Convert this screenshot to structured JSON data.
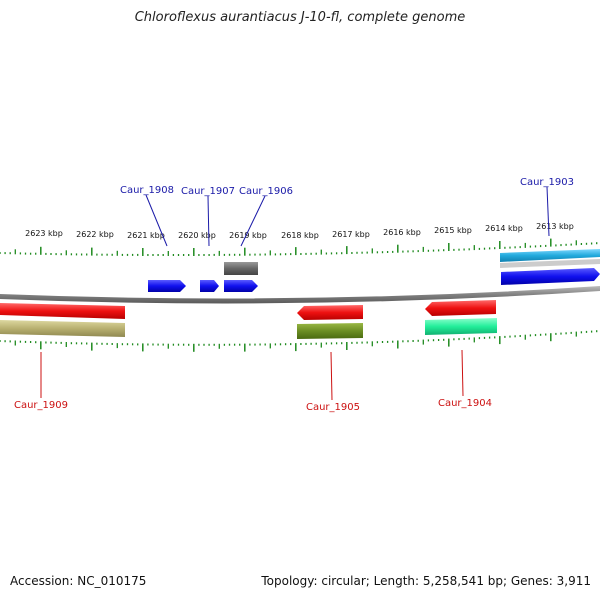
{
  "title": "Chloroflexus aurantiacus J-10-fl, complete genome",
  "footer": {
    "accession": "Accession: NC_010175",
    "summary": "Topology: circular; Length: 5,258,541 bp; Genes: 3,911"
  },
  "scale_labels": [
    "2623 kbp",
    "2622 kbp",
    "2621 kbp",
    "2620 kbp",
    "2619 kbp",
    "2618 kbp",
    "2617 kbp",
    "2616 kbp",
    "2615 kbp",
    "2614 kbp",
    "2613 kbp"
  ],
  "gene_labels_forward": [
    "Caur_1908",
    "Caur_1907",
    "Caur_1906",
    "Caur_1903"
  ],
  "gene_labels_reverse": [
    "Caur_1909",
    "Caur_1905",
    "Caur_1904"
  ],
  "colors": {
    "forward_label": "#1a1aa8",
    "reverse_label": "#cc1111",
    "tick": "#1f8a1f",
    "backbone": "#808080",
    "forward_gene": "#1010ee",
    "reverse_gene": "#ee1111",
    "olive": "#6b8e23",
    "khaki": "#b8b070",
    "teal": "#22ee9a",
    "cyan": "#22aadd",
    "gray": "#666666"
  }
}
